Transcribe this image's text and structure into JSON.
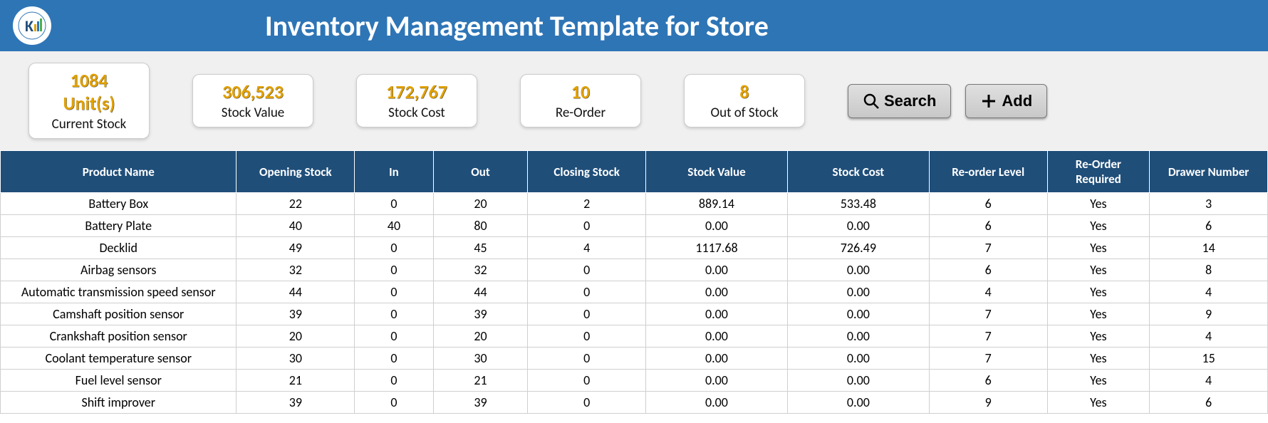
{
  "header": {
    "title": "Inventory Management Template for Store",
    "background_color": "#2e75b6",
    "title_color": "#ffffff"
  },
  "summary": {
    "background_color": "#f0f0f0",
    "card_background": "#ffffff",
    "value_color": "#e2a100",
    "label_color": "#111111",
    "cards": [
      {
        "value": "1084 Unit(s)",
        "label": "Current Stock"
      },
      {
        "value": "306,523",
        "label": "Stock Value"
      },
      {
        "value": "172,767",
        "label": "Stock Cost"
      },
      {
        "value": "10",
        "label": "Re-Order"
      },
      {
        "value": "8",
        "label": "Out of Stock"
      }
    ],
    "buttons": {
      "search_label": "Search",
      "add_label": "Add",
      "button_background": "#d4d4d4"
    }
  },
  "table": {
    "header_background": "#1f4e79",
    "header_text_color": "#ffffff",
    "border_color": "#cfcfcf",
    "columns": [
      "Product Name",
      "Opening Stock",
      "In",
      "Out",
      "Closing Stock",
      "Stock Value",
      "Stock Cost",
      "Re-order Level",
      "Re-Order Required",
      "Drawer Number"
    ],
    "rows": [
      [
        "Battery Box",
        "22",
        "0",
        "20",
        "2",
        "889.14",
        "533.48",
        "6",
        "Yes",
        "3"
      ],
      [
        "Battery Plate",
        "40",
        "40",
        "80",
        "0",
        "0.00",
        "0.00",
        "6",
        "Yes",
        "6"
      ],
      [
        "Decklid",
        "49",
        "0",
        "45",
        "4",
        "1117.68",
        "726.49",
        "7",
        "Yes",
        "14"
      ],
      [
        "Airbag sensors",
        "32",
        "0",
        "32",
        "0",
        "0.00",
        "0.00",
        "6",
        "Yes",
        "8"
      ],
      [
        "Automatic transmission speed sensor",
        "44",
        "0",
        "44",
        "0",
        "0.00",
        "0.00",
        "4",
        "Yes",
        "4"
      ],
      [
        "Camshaft position sensor",
        "39",
        "0",
        "39",
        "0",
        "0.00",
        "0.00",
        "7",
        "Yes",
        "9"
      ],
      [
        "Crankshaft position sensor",
        "20",
        "0",
        "20",
        "0",
        "0.00",
        "0.00",
        "7",
        "Yes",
        "4"
      ],
      [
        "Coolant temperature sensor",
        "30",
        "0",
        "30",
        "0",
        "0.00",
        "0.00",
        "7",
        "Yes",
        "15"
      ],
      [
        "Fuel level sensor",
        "21",
        "0",
        "21",
        "0",
        "0.00",
        "0.00",
        "6",
        "Yes",
        "4"
      ],
      [
        "Shift improver",
        "39",
        "0",
        "39",
        "0",
        "0.00",
        "0.00",
        "9",
        "Yes",
        "6"
      ]
    ]
  }
}
